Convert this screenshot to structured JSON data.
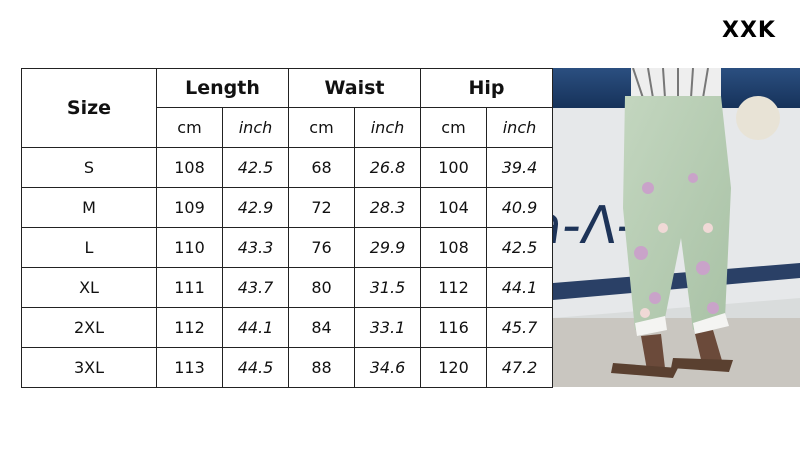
{
  "brand": "XXK",
  "table": {
    "size_header": "Size",
    "groups": [
      "Length",
      "Waist",
      "Hip"
    ],
    "units": [
      "cm",
      "inch",
      "cm",
      "inch",
      "cm",
      "inch"
    ],
    "rows": [
      [
        "S",
        "108",
        "42.5",
        "68",
        "26.8",
        "100",
        "39.4"
      ],
      [
        "M",
        "109",
        "42.9",
        "72",
        "28.3",
        "104",
        "40.9"
      ],
      [
        "L",
        "110",
        "43.3",
        "76",
        "29.9",
        "108",
        "42.5"
      ],
      [
        "XL",
        "111",
        "43.7",
        "80",
        "31.5",
        "112",
        "44.1"
      ],
      [
        "2XL",
        "112",
        "44.1",
        "84",
        "33.1",
        "116",
        "45.7"
      ],
      [
        "3XL",
        "113",
        "44.5",
        "88",
        "34.6",
        "120",
        "47.2"
      ]
    ]
  },
  "colors": {
    "pants": "#b8cfb4",
    "boat_blue": "#1f3f6e",
    "floor": "#c9c6c0"
  }
}
